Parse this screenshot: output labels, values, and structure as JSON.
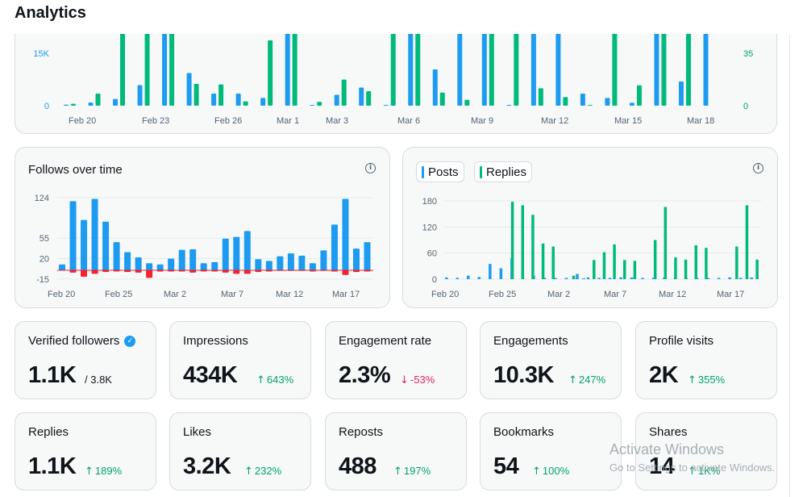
{
  "page": {
    "title": "Analytics"
  },
  "top_chart": {
    "left_ticks": [
      "15K",
      "0"
    ],
    "right_ticks": [
      "35",
      "0"
    ],
    "x_labels": [
      "Feb 20",
      "Feb 23",
      "Feb 26",
      "Mar 1",
      "Mar 3",
      "Mar 6",
      "Mar 9",
      "Mar 12",
      "Mar 15",
      "Mar 18"
    ]
  },
  "follows_chart": {
    "title": "Follows over time",
    "y_ticks": [
      "124",
      "55",
      "20",
      "-15"
    ],
    "x_labels": [
      "Feb 20",
      "Feb 25",
      "Mar 2",
      "Mar 7",
      "Mar 12",
      "Mar 17"
    ]
  },
  "replies_chart": {
    "legend": [
      "Posts",
      "Replies"
    ],
    "y_ticks": [
      "180",
      "120",
      "60",
      "0"
    ],
    "x_labels": [
      "Feb 20",
      "Feb 25",
      "Mar 2",
      "Mar 7",
      "Mar 12",
      "Mar 17"
    ]
  },
  "cards": [
    {
      "label": "Verified followers",
      "value": "1.1K",
      "sub": "/ 3.8K",
      "trend": "none"
    },
    {
      "label": "Impressions",
      "value": "434K",
      "sub": "643%",
      "trend": "up"
    },
    {
      "label": "Engagement rate",
      "value": "2.3%",
      "sub": "-53%",
      "trend": "down"
    },
    {
      "label": "Engagements",
      "value": "10.3K",
      "sub": "247%",
      "trend": "up"
    },
    {
      "label": "Profile visits",
      "value": "2K",
      "sub": "355%",
      "trend": "up"
    },
    {
      "label": "Replies",
      "value": "1.1K",
      "sub": "189%",
      "trend": "up"
    },
    {
      "label": "Likes",
      "value": "3.2K",
      "sub": "232%",
      "trend": "up"
    },
    {
      "label": "Reposts",
      "value": "488",
      "sub": "197%",
      "trend": "up"
    },
    {
      "label": "Bookmarks",
      "value": "54",
      "sub": "100%",
      "trend": "up"
    },
    {
      "label": "Shares",
      "value": "14",
      "sub": "1K%",
      "trend": "up"
    }
  ],
  "watermark": {
    "line1": "Activate Windows",
    "line2": "Go to Settings to activate Windows."
  },
  "chart_data": [
    {
      "type": "bar",
      "x_labels_shown": [
        "Feb 20",
        "Feb 23",
        "Feb 26",
        "Mar 1",
        "Mar 3",
        "Mar 6",
        "Mar 9",
        "Mar 12",
        "Mar 15",
        "Mar 18"
      ],
      "left_axis": {
        "ticks": [
          "0",
          "15K"
        ]
      },
      "right_axis": {
        "ticks": [
          "0",
          "35"
        ]
      },
      "series": [
        {
          "color": "#1d9bf0",
          "values": [
            0.4,
            1.3,
            2.8,
            8.5,
            30,
            13.5,
            5,
            5,
            3.2,
            30,
            0.3,
            4.5,
            7.5,
            0.2,
            30,
            15,
            30,
            30,
            0.1,
            30,
            30,
            5,
            3.2,
            1.2,
            30,
            10,
            30
          ]
        },
        {
          "color": "#00ba7c",
          "values": [
            0.8,
            5,
            30,
            30,
            30,
            9,
            8.8,
            1.8,
            27,
            30,
            1.6,
            10.8,
            6,
            30,
            30,
            5.4,
            2.4,
            30,
            30,
            7.2,
            3.6,
            0.1,
            30,
            8.4,
            30,
            30
          ]
        }
      ]
    },
    {
      "type": "bar",
      "title": "Follows over time",
      "x_labels_shown": [
        "Feb 20",
        "Feb 25",
        "Mar 2",
        "Mar 7",
        "Mar 12",
        "Mar 17"
      ],
      "y_ticks": [
        "124",
        "55",
        "20",
        "-15"
      ],
      "series": [
        {
          "color": "#1d9bf0",
          "values": [
            10,
            118,
            86,
            122,
            83,
            48,
            31,
            22,
            12,
            10,
            20,
            35,
            36,
            12,
            14,
            54,
            57,
            67,
            19,
            16,
            24,
            29,
            25,
            12,
            34,
            78,
            122,
            37,
            48
          ]
        },
        {
          "color": "#f4212e",
          "values": [
            0,
            -4,
            -11,
            -6,
            -3,
            -2,
            -3,
            -4,
            -13,
            -2,
            -2,
            -2,
            -4,
            -2,
            -2,
            -4,
            -6,
            -6,
            -3,
            -2,
            -1,
            -1,
            -1,
            -2,
            -1,
            -2,
            -8,
            -3,
            -2
          ]
        }
      ]
    },
    {
      "type": "bar",
      "legend": [
        "Posts",
        "Replies"
      ],
      "x_labels_shown": [
        "Feb 20",
        "Feb 25",
        "Mar 2",
        "Mar 7",
        "Mar 12",
        "Mar 17"
      ],
      "y_ticks": [
        "180",
        "120",
        "60",
        "0"
      ],
      "series": [
        {
          "name": "Posts",
          "color": "#1d9bf0",
          "values": [
            4,
            3,
            8,
            5,
            35,
            25,
            48,
            4,
            8,
            3,
            2,
            3,
            12,
            4,
            3,
            3,
            4,
            4,
            2,
            3,
            4,
            4,
            3,
            2,
            2,
            2,
            4,
            3,
            4
          ]
        },
        {
          "name": "Replies",
          "color": "#00ba7c",
          "values": [
            0,
            0,
            0,
            0,
            0,
            0,
            178,
            170,
            148,
            82,
            75,
            0,
            8,
            2,
            44,
            62,
            80,
            44,
            42,
            0,
            90,
            166,
            50,
            45,
            78,
            72,
            0,
            0,
            75,
            170,
            45
          ]
        }
      ]
    }
  ]
}
